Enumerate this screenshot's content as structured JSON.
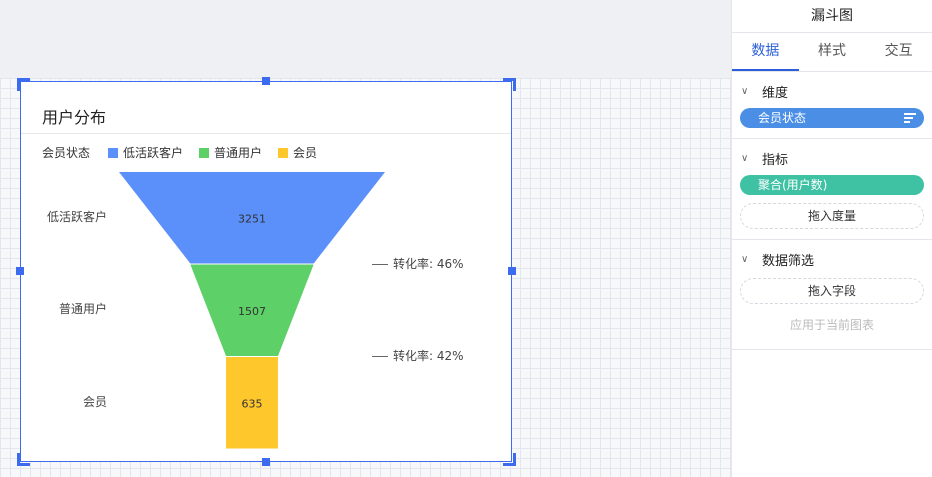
{
  "panel": {
    "title": "漏斗图",
    "tabs": [
      "数据",
      "样式",
      "交互"
    ],
    "dimension": {
      "label": "维度",
      "field": "会员状态"
    },
    "measure": {
      "label": "指标",
      "field": "聚合(用户数)",
      "drop_label": "拖入度量"
    },
    "filter": {
      "label": "数据筛选",
      "drop_label": "拖入字段",
      "hint": "应用于当前图表"
    }
  },
  "chart": {
    "title": "用户分布",
    "legend_title": "会员状态",
    "conversions": [
      "转化率: 46%",
      "转化率: 42%"
    ]
  },
  "chart_data": {
    "type": "funnel",
    "title": "用户分布",
    "categories": [
      "低活跃客户",
      "普通用户",
      "会员"
    ],
    "values": [
      3251,
      1507,
      635
    ],
    "colors": [
      "#5b8ff9",
      "#5ed068",
      "#fec72c"
    ],
    "conversion_rates": [
      "46%",
      "42%"
    ]
  }
}
